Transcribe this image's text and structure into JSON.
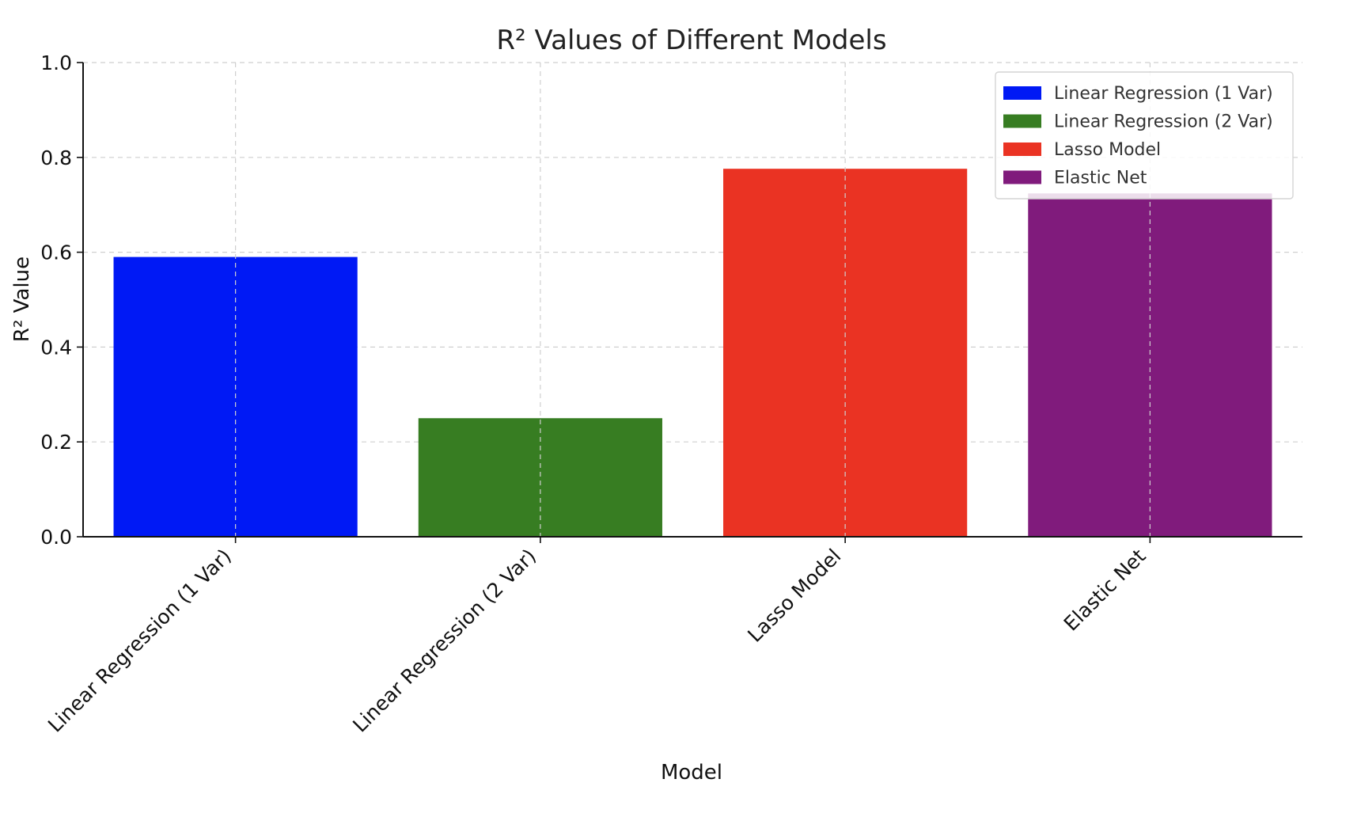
{
  "chart_data": {
    "type": "bar",
    "title": "R² Values of Different Models",
    "xlabel": "Model",
    "ylabel": "R² Value",
    "categories": [
      "Linear Regression (1 Var)",
      "Linear Regression (2 Var)",
      "Lasso Model",
      "Elastic Net"
    ],
    "values": [
      0.59,
      0.25,
      0.776,
      0.724
    ],
    "colors": [
      "#0019f5",
      "#377d22",
      "#ea3323",
      "#801b7c"
    ],
    "ylim": [
      0.0,
      1.0
    ],
    "yticks": [
      "0.0",
      "0.2",
      "0.4",
      "0.6",
      "0.8",
      "1.0"
    ],
    "grid": true,
    "legend": {
      "placement": "top-right",
      "entries": [
        "Linear Regression (1 Var)",
        "Linear Regression (2 Var)",
        "Lasso Model",
        "Elastic Net"
      ]
    }
  }
}
